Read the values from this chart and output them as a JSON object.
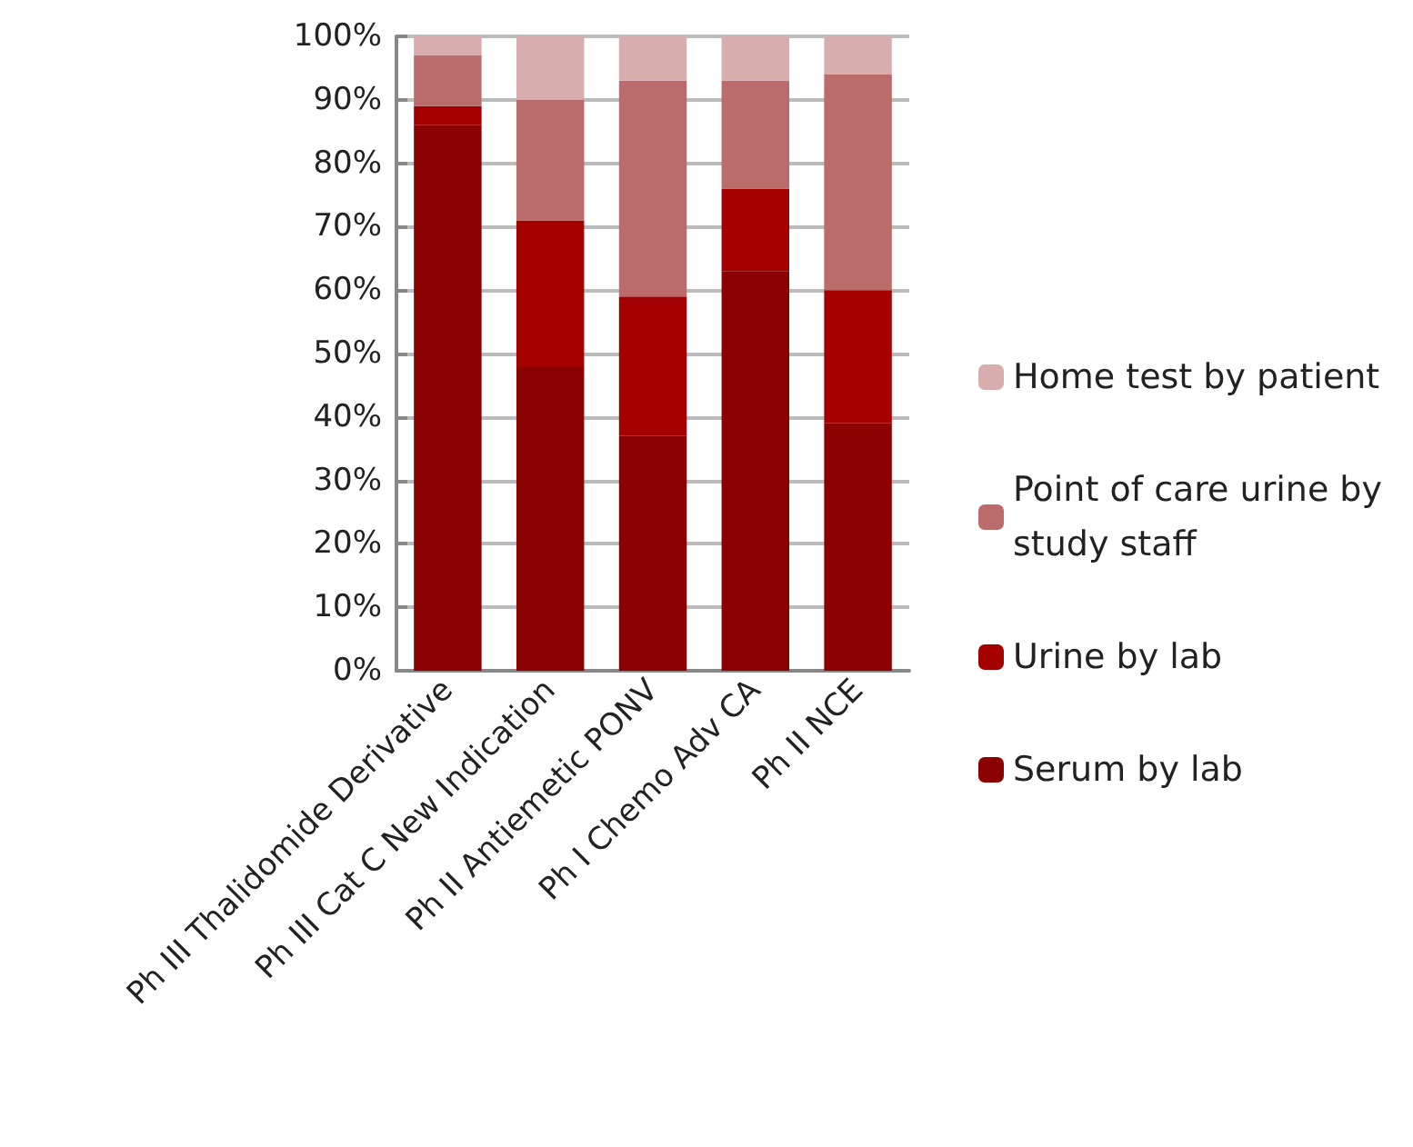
{
  "chart_data": {
    "type": "bar",
    "stacked": true,
    "categories": [
      "Ph III Thalidomide Derivative",
      "Ph III Cat C New Indication",
      "Ph II Antiemetic PONV",
      "Ph I Chemo Adv CA",
      "Ph II NCE"
    ],
    "series": [
      {
        "name": "Serum by lab",
        "color": "#8b0000",
        "values": [
          86,
          48,
          37,
          63,
          39
        ]
      },
      {
        "name": "Urine by lab",
        "color": "#a50000",
        "values": [
          3,
          23,
          22,
          13,
          21
        ]
      },
      {
        "name": "Point of care urine by study staff",
        "color": "#bc6b6b",
        "values": [
          8,
          19,
          34,
          17,
          34
        ]
      },
      {
        "name": "Home test by patient",
        "color": "#d8adad",
        "values": [
          3,
          10,
          7,
          7,
          6
        ]
      }
    ],
    "ylim": [
      0,
      100
    ],
    "yticks": [
      {
        "value": 0,
        "label": "0%"
      },
      {
        "value": 10,
        "label": "10%"
      },
      {
        "value": 20,
        "label": "20%"
      },
      {
        "value": 30,
        "label": "30%"
      },
      {
        "value": 40,
        "label": "40%"
      },
      {
        "value": 50,
        "label": "50%"
      },
      {
        "value": 60,
        "label": "60%"
      },
      {
        "value": 70,
        "label": "70%"
      },
      {
        "value": 80,
        "label": "80%"
      },
      {
        "value": 90,
        "label": "90%"
      },
      {
        "value": 100,
        "label": "100%"
      }
    ],
    "grid": "y",
    "legend": "right"
  }
}
